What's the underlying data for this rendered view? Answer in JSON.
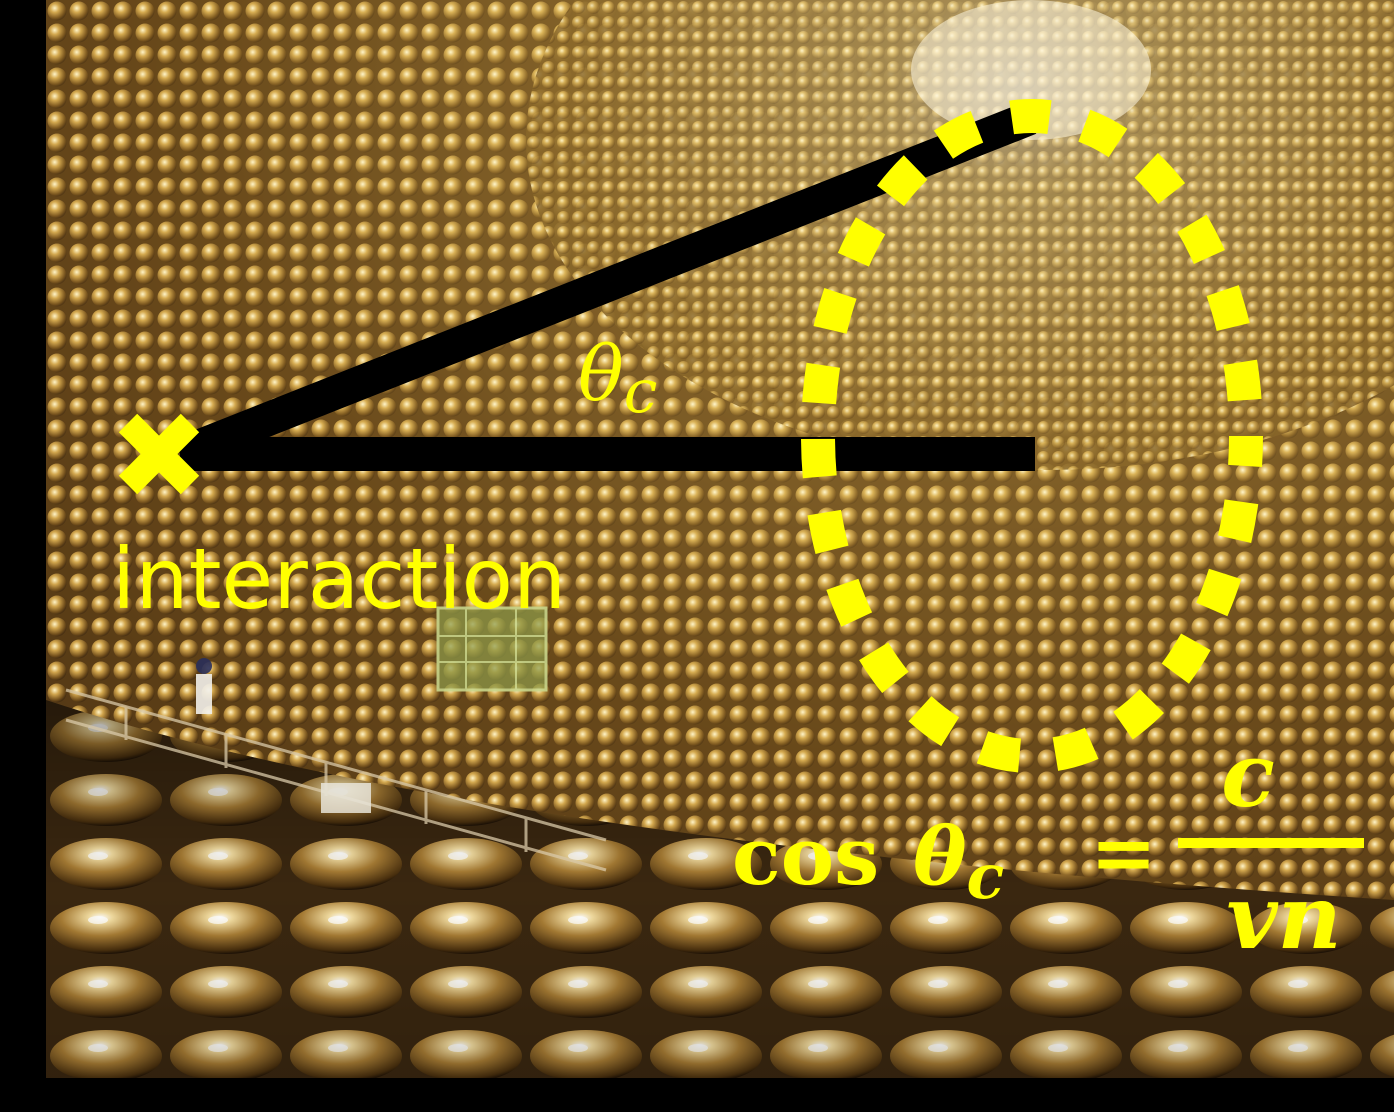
{
  "labels": {
    "interaction": "interaction",
    "angle_symbol": "θ",
    "angle_subscript": "c"
  },
  "formula": {
    "lhs_function": "cos",
    "lhs_symbol": "θ",
    "lhs_subscript": "c",
    "equals": "=",
    "numerator": "c",
    "denominator": "vn"
  },
  "colors": {
    "annotation": "#ffff00",
    "lines": "#000000",
    "frame": "#000000"
  },
  "icons": {
    "interaction_marker": "x-mark-icon"
  }
}
